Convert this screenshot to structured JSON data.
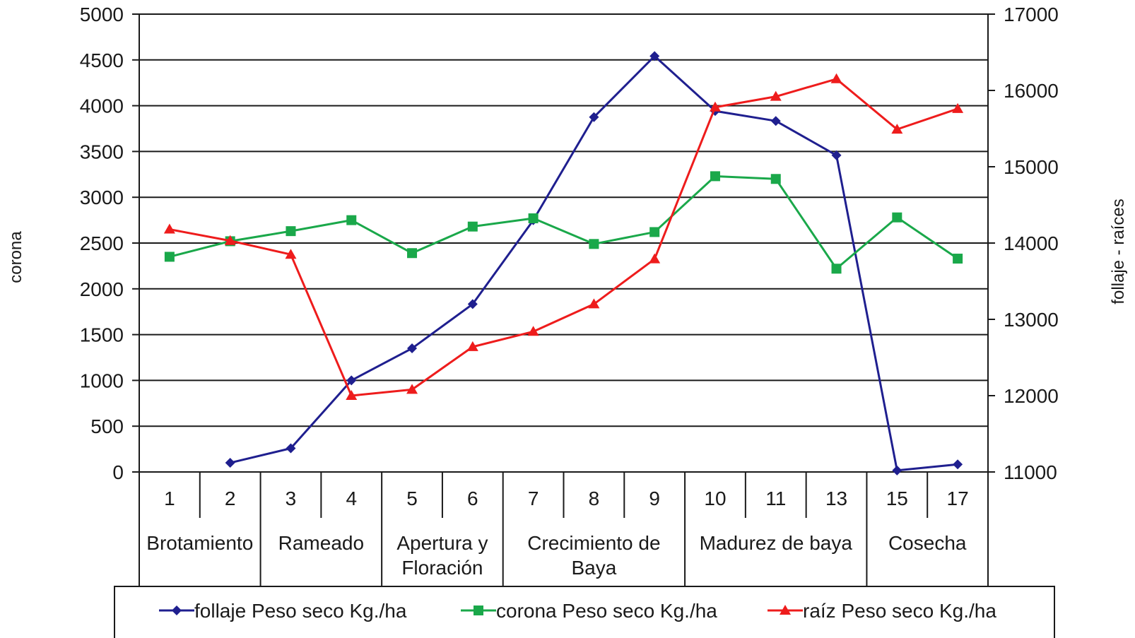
{
  "chart_data": {
    "type": "line",
    "x": [
      "1",
      "2",
      "3",
      "4",
      "5",
      "6",
      "7",
      "8",
      "9",
      "10",
      "11",
      "13",
      "15",
      "17"
    ],
    "stages": [
      {
        "label": "Brotamiento",
        "lines": [
          "Brotamiento"
        ],
        "from": 0,
        "to": 1
      },
      {
        "label": "Rameado",
        "lines": [
          "Rameado"
        ],
        "from": 2,
        "to": 3
      },
      {
        "label": "Apertura y Floración",
        "lines": [
          "Apertura y",
          "Floración"
        ],
        "from": 4,
        "to": 5
      },
      {
        "label": "Crecimiento de Baya",
        "lines": [
          "Crecimiento de",
          "Baya"
        ],
        "from": 6,
        "to": 8
      },
      {
        "label": "Madurez de baya",
        "lines": [
          "Madurez de baya"
        ],
        "from": 9,
        "to": 11
      },
      {
        "label": "Cosecha",
        "lines": [
          "Cosecha"
        ],
        "from": 12,
        "to": 13
      }
    ],
    "y_left": {
      "label": "corona",
      "min": 0,
      "max": 5000,
      "step": 500,
      "ticks": [
        "0",
        "500",
        "1000",
        "1500",
        "2000",
        "2500",
        "3000",
        "3500",
        "4000",
        "4500",
        "5000"
      ]
    },
    "y_right": {
      "label": "follaje - raíces",
      "min": 11000,
      "max": 17000,
      "step": 1000,
      "ticks": [
        "11000",
        "12000",
        "13000",
        "14000",
        "15000",
        "16000",
        "17000"
      ]
    },
    "series": [
      {
        "name": "follaje Peso seco Kg./ha",
        "axis": "right",
        "color": "#1f1f8f",
        "marker": "diamond",
        "values": [
          null,
          11120,
          11310,
          12200,
          12620,
          13200,
          14300,
          15650,
          16450,
          15730,
          15600,
          15150,
          11020,
          11100
        ]
      },
      {
        "name": "corona Peso seco Kg./ha",
        "axis": "left",
        "color": "#1aa84a",
        "marker": "square",
        "values": [
          2350,
          2520,
          2630,
          2750,
          2390,
          2680,
          2770,
          2490,
          2620,
          3230,
          3200,
          2220,
          2780,
          2330
        ]
      },
      {
        "name": "raíz Peso seco Kg./ha",
        "axis": "right",
        "color": "#ee1c1c",
        "marker": "triangle",
        "values": [
          14180,
          14030,
          13850,
          12000,
          12080,
          12640,
          12840,
          13200,
          13790,
          15780,
          15920,
          16150,
          15490,
          15760
        ]
      }
    ],
    "grid": true,
    "legend": "bottom"
  }
}
